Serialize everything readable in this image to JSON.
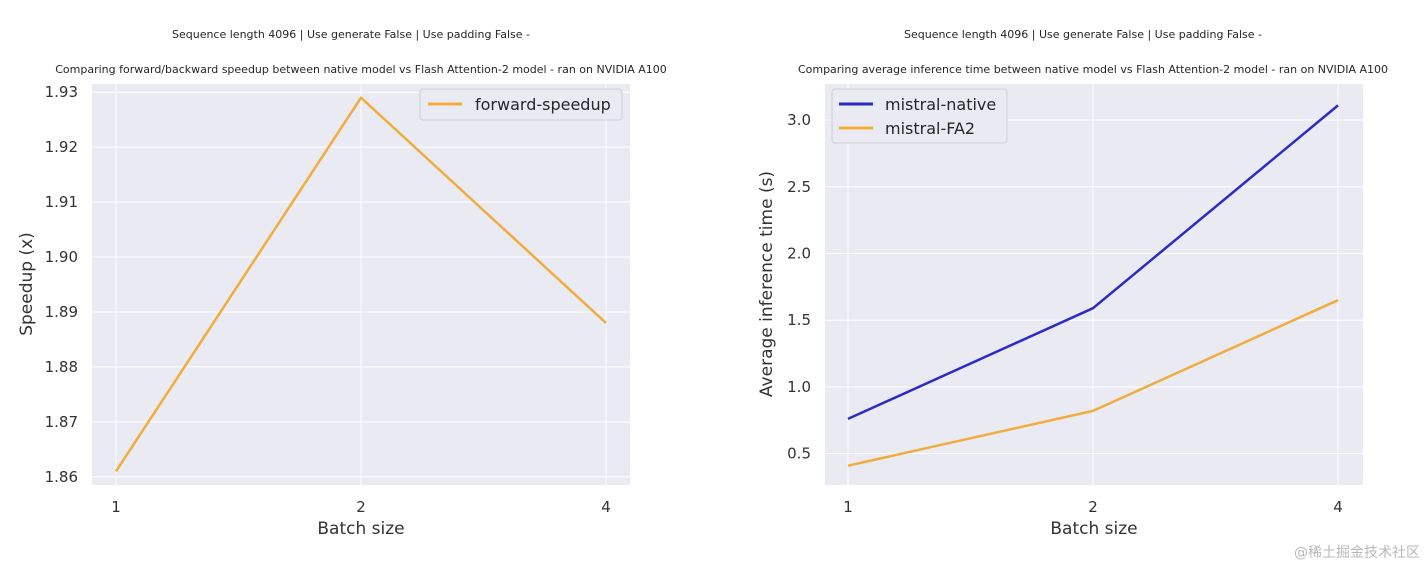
{
  "watermark": "@稀土掘金技术社区",
  "chart_data": [
    {
      "type": "line",
      "title_line1": "Sequence length 4096 | Use generate False | Use padding False -",
      "title_line2": "Comparing forward/backward speedup between native model vs Flash Attention-2 model - ran on NVIDIA A100",
      "xlabel": "Batch size",
      "ylabel": "Speedup (x)",
      "x": [
        "1",
        "2",
        "4"
      ],
      "ylim": [
        1.8585,
        1.9315
      ],
      "yticks": [
        1.86,
        1.87,
        1.88,
        1.89,
        1.9,
        1.91,
        1.92,
        1.93
      ],
      "ytick_labels": [
        "1.86",
        "1.87",
        "1.88",
        "1.89",
        "1.90",
        "1.91",
        "1.92",
        "1.93"
      ],
      "grid": true,
      "legend_placement": "upper right",
      "series": [
        {
          "name": "forward-speedup",
          "color": "#f0ad3e",
          "values": [
            1.861,
            1.929,
            1.888
          ]
        }
      ]
    },
    {
      "type": "line",
      "title_line1": "Sequence length 4096 | Use generate False | Use padding False -",
      "title_line2": "Comparing average inference time between native model vs Flash Attention-2 model - ran on NVIDIA A100",
      "xlabel": "Batch size",
      "ylabel": "Average inference time (s)",
      "x": [
        "1",
        "2",
        "4"
      ],
      "ylim": [
        0.265,
        3.27
      ],
      "yticks": [
        0.5,
        1.0,
        1.5,
        2.0,
        2.5,
        3.0
      ],
      "ytick_labels": [
        "0.5",
        "1.0",
        "1.5",
        "2.0",
        "2.5",
        "3.0"
      ],
      "grid": true,
      "legend_placement": "upper left",
      "series": [
        {
          "name": "mistral-native",
          "color": "#2b2bc6",
          "values": [
            0.76,
            1.59,
            3.11
          ]
        },
        {
          "name": "mistral-FA2",
          "color": "#f0ad3e",
          "values": [
            0.41,
            0.82,
            1.65
          ]
        }
      ]
    }
  ]
}
